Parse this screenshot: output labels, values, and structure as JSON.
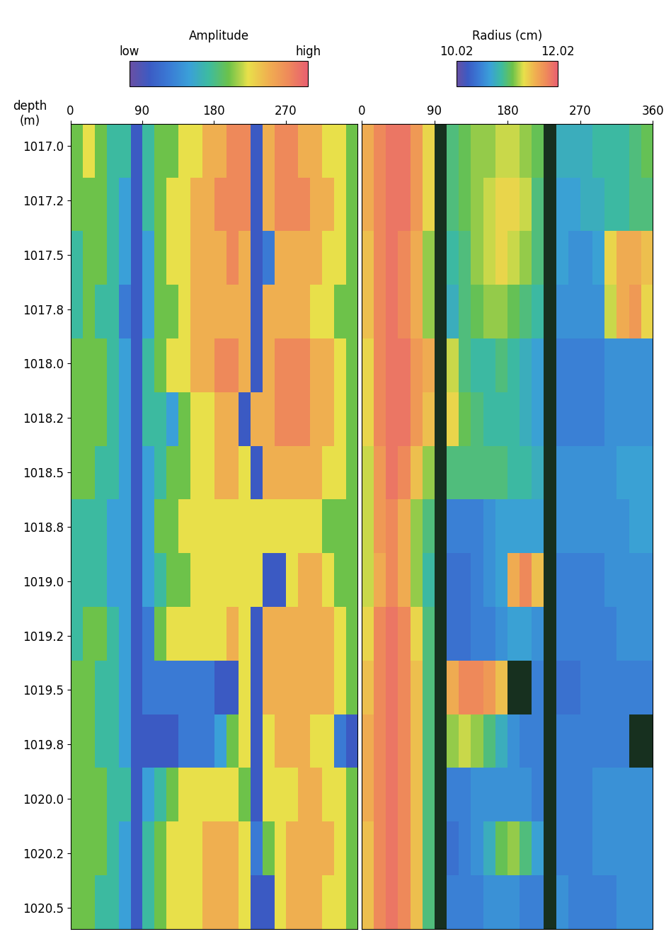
{
  "chart_data": [
    {
      "type": "heatmap",
      "ylabel": "depth\n(m)",
      "xlim": [
        0,
        360
      ],
      "xticks": [
        0,
        90,
        180,
        270
      ],
      "ylim": [
        1020.6,
        1016.9
      ],
      "yticks": [
        {
          "value": 1017.0,
          "label": "1017.0"
        },
        {
          "value": 1017.25,
          "label": "1017.2"
        },
        {
          "value": 1017.5,
          "label": "1017.5"
        },
        {
          "value": 1017.75,
          "label": "1017.8"
        },
        {
          "value": 1018.0,
          "label": "1018.0"
        },
        {
          "value": 1018.25,
          "label": "1018.2"
        },
        {
          "value": 1018.5,
          "label": "1018.5"
        },
        {
          "value": 1018.75,
          "label": "1018.8"
        },
        {
          "value": 1019.0,
          "label": "1019.0"
        },
        {
          "value": 1019.25,
          "label": "1019.2"
        },
        {
          "value": 1019.5,
          "label": "1019.5"
        },
        {
          "value": 1019.75,
          "label": "1019.8"
        },
        {
          "value": 1020.0,
          "label": "1020.0"
        },
        {
          "value": 1020.25,
          "label": "1020.2"
        },
        {
          "value": 1020.5,
          "label": "1020.5"
        }
      ],
      "colorbar": {
        "label": "Amplitude",
        "range": [
          0,
          9
        ],
        "ticks": [
          {
            "value": 0,
            "label": "low"
          },
          {
            "value": 9,
            "label": "high"
          }
        ]
      },
      "cells": [
        [
          5,
          6,
          5,
          4,
          4,
          1,
          4,
          5,
          5,
          6,
          6,
          7,
          7,
          8,
          8,
          1,
          7,
          8,
          8,
          7,
          7,
          6,
          6,
          5
        ],
        [
          5,
          5,
          5,
          4,
          3,
          1,
          4,
          5,
          6,
          6,
          7,
          7,
          8,
          8,
          8,
          1,
          7,
          8,
          8,
          8,
          7,
          7,
          6,
          5
        ],
        [
          4,
          5,
          5,
          4,
          3,
          1,
          3,
          5,
          6,
          6,
          7,
          7,
          7,
          8,
          7,
          1,
          2,
          7,
          7,
          7,
          7,
          6,
          6,
          5
        ],
        [
          4,
          5,
          4,
          4,
          2,
          1,
          3,
          5,
          5,
          6,
          7,
          7,
          7,
          7,
          7,
          1,
          7,
          7,
          7,
          7,
          6,
          6,
          5,
          5
        ],
        [
          5,
          5,
          5,
          4,
          3,
          1,
          4,
          5,
          6,
          6,
          7,
          7,
          8,
          8,
          7,
          1,
          7,
          8,
          8,
          8,
          7,
          7,
          6,
          5
        ],
        [
          5,
          5,
          5,
          4,
          3,
          1,
          4,
          4,
          3,
          5,
          6,
          6,
          7,
          7,
          1,
          7,
          7,
          8,
          8,
          8,
          7,
          7,
          6,
          5
        ],
        [
          5,
          5,
          4,
          4,
          3,
          1,
          3,
          4,
          5,
          5,
          6,
          6,
          7,
          7,
          6,
          1,
          7,
          7,
          7,
          7,
          7,
          6,
          6,
          5
        ],
        [
          4,
          4,
          4,
          3,
          3,
          1,
          3,
          5,
          5,
          6,
          6,
          6,
          6,
          6,
          6,
          6,
          6,
          6,
          6,
          6,
          6,
          5,
          5,
          5
        ],
        [
          4,
          4,
          4,
          3,
          3,
          1,
          3,
          4,
          5,
          5,
          6,
          6,
          6,
          6,
          6,
          6,
          1,
          1,
          6,
          7,
          7,
          6,
          5,
          5
        ],
        [
          4,
          5,
          5,
          4,
          3,
          1,
          2,
          5,
          6,
          6,
          6,
          6,
          6,
          7,
          6,
          1,
          7,
          7,
          7,
          7,
          7,
          7,
          6,
          5
        ],
        [
          5,
          5,
          4,
          4,
          3,
          1,
          2,
          2,
          2,
          2,
          2,
          2,
          1,
          1,
          6,
          1,
          7,
          7,
          7,
          7,
          7,
          7,
          6,
          5
        ],
        [
          5,
          5,
          4,
          4,
          3,
          1,
          1,
          1,
          1,
          2,
          2,
          2,
          3,
          5,
          6,
          1,
          6,
          7,
          7,
          7,
          6,
          6,
          2,
          1
        ],
        [
          5,
          5,
          5,
          4,
          4,
          1,
          3,
          4,
          5,
          6,
          6,
          6,
          6,
          6,
          5,
          1,
          6,
          6,
          6,
          7,
          7,
          6,
          6,
          5
        ],
        [
          5,
          5,
          5,
          4,
          3,
          1,
          4,
          5,
          6,
          6,
          6,
          7,
          7,
          7,
          6,
          2,
          5,
          6,
          7,
          7,
          7,
          7,
          6,
          5
        ],
        [
          5,
          5,
          4,
          4,
          3,
          1,
          4,
          5,
          6,
          6,
          6,
          7,
          7,
          7,
          6,
          1,
          1,
          6,
          7,
          7,
          7,
          6,
          6,
          5
        ]
      ]
    },
    {
      "type": "heatmap",
      "tick_labels": "x",
      "xlim": [
        0,
        360
      ],
      "xticks": [
        0,
        90,
        180,
        270,
        360
      ],
      "ylim": [
        1020.6,
        1016.9
      ],
      "colorbar": {
        "label": "Radius (cm)",
        "range": [
          10.02,
          12.02
        ],
        "ticks": [
          10.02,
          12.02
        ]
      },
      "cells": [
        [
          11.6,
          11.8,
          11.9,
          11.9,
          11.7,
          11.4,
          9.9,
          11.0,
          11.1,
          11.2,
          11.2,
          11.3,
          11.3,
          11.2,
          11.1,
          9.9,
          10.8,
          10.8,
          10.8,
          10.9,
          10.9,
          10.9,
          11.0,
          11.1
        ],
        [
          11.6,
          11.8,
          11.9,
          11.9,
          11.7,
          11.4,
          9.9,
          11.0,
          11.1,
          11.2,
          11.3,
          11.4,
          11.4,
          11.3,
          11.0,
          9.9,
          10.7,
          10.7,
          10.8,
          10.8,
          10.9,
          10.9,
          11.0,
          11.0
        ],
        [
          11.5,
          11.8,
          11.9,
          11.8,
          11.6,
          11.2,
          9.9,
          10.9,
          11.0,
          11.2,
          11.3,
          11.4,
          11.3,
          11.2,
          11.0,
          9.9,
          10.7,
          10.6,
          10.6,
          10.7,
          11.4,
          11.6,
          11.6,
          11.5
        ],
        [
          11.5,
          11.8,
          11.9,
          11.8,
          11.6,
          11.2,
          9.9,
          10.8,
          11.0,
          11.1,
          11.2,
          11.2,
          11.1,
          11.0,
          10.9,
          9.9,
          10.6,
          10.6,
          10.6,
          10.6,
          11.3,
          11.6,
          11.7,
          11.4
        ],
        [
          11.4,
          11.8,
          11.9,
          11.9,
          11.7,
          11.6,
          9.9,
          11.3,
          11.0,
          10.9,
          10.9,
          11.0,
          10.9,
          10.8,
          10.7,
          9.9,
          10.5,
          10.5,
          10.5,
          10.5,
          10.6,
          10.6,
          10.6,
          10.6
        ],
        [
          11.4,
          11.8,
          11.9,
          11.9,
          11.7,
          11.5,
          9.9,
          11.4,
          11.1,
          11.0,
          10.9,
          10.9,
          10.9,
          10.8,
          10.7,
          9.9,
          10.5,
          10.5,
          10.5,
          10.5,
          10.6,
          10.6,
          10.6,
          10.6
        ],
        [
          11.3,
          11.7,
          11.9,
          11.8,
          11.5,
          11.2,
          9.9,
          11.0,
          11.0,
          11.0,
          11.0,
          11.0,
          10.9,
          10.9,
          10.8,
          9.9,
          10.6,
          10.6,
          10.6,
          10.6,
          10.6,
          10.7,
          10.7,
          10.7
        ],
        [
          11.3,
          11.7,
          11.8,
          11.6,
          11.2,
          11.0,
          9.9,
          10.5,
          10.5,
          10.5,
          10.6,
          10.7,
          10.7,
          10.7,
          10.7,
          9.9,
          10.6,
          10.6,
          10.6,
          10.6,
          10.6,
          10.6,
          10.7,
          10.7
        ],
        [
          11.3,
          11.6,
          11.8,
          11.6,
          11.2,
          10.9,
          9.9,
          10.4,
          10.4,
          10.5,
          10.6,
          10.7,
          11.6,
          11.8,
          11.5,
          9.9,
          10.5,
          10.5,
          10.5,
          10.5,
          10.6,
          10.6,
          10.6,
          10.6
        ],
        [
          11.4,
          11.8,
          11.9,
          11.8,
          11.4,
          11.0,
          9.9,
          10.4,
          10.4,
          10.5,
          10.5,
          10.6,
          10.7,
          10.7,
          10.6,
          9.9,
          10.5,
          10.5,
          10.5,
          10.5,
          10.5,
          10.6,
          10.6,
          10.6
        ],
        [
          11.5,
          11.8,
          11.9,
          11.8,
          11.5,
          11.0,
          9.9,
          11.6,
          11.8,
          11.8,
          11.7,
          11.5,
          9.9,
          9.9,
          10.5,
          9.9,
          10.4,
          10.4,
          10.5,
          10.5,
          10.5,
          10.5,
          10.5,
          10.5
        ],
        [
          11.6,
          11.8,
          11.9,
          11.8,
          11.5,
          11.0,
          9.9,
          11.2,
          11.3,
          11.2,
          11.0,
          10.8,
          10.6,
          10.5,
          10.5,
          9.9,
          10.5,
          10.5,
          10.5,
          10.5,
          10.5,
          10.5,
          9.9,
          9.9
        ],
        [
          11.6,
          11.8,
          11.9,
          11.8,
          11.5,
          11.0,
          9.9,
          10.5,
          10.5,
          10.6,
          10.6,
          10.6,
          10.6,
          10.6,
          10.5,
          9.9,
          10.5,
          10.5,
          10.5,
          10.6,
          10.6,
          10.6,
          10.6,
          10.6
        ],
        [
          11.5,
          11.8,
          11.9,
          11.8,
          11.5,
          11.0,
          9.9,
          10.4,
          10.5,
          10.6,
          10.8,
          11.1,
          11.2,
          11.0,
          10.7,
          9.9,
          10.5,
          10.5,
          10.5,
          10.6,
          10.6,
          10.6,
          10.6,
          10.6
        ],
        [
          11.5,
          11.8,
          11.9,
          11.8,
          11.5,
          11.0,
          9.9,
          10.5,
          10.5,
          10.5,
          10.6,
          10.6,
          10.6,
          10.5,
          10.5,
          9.9,
          10.6,
          10.5,
          10.5,
          10.5,
          10.5,
          10.6,
          10.6,
          10.6
        ]
      ]
    }
  ]
}
